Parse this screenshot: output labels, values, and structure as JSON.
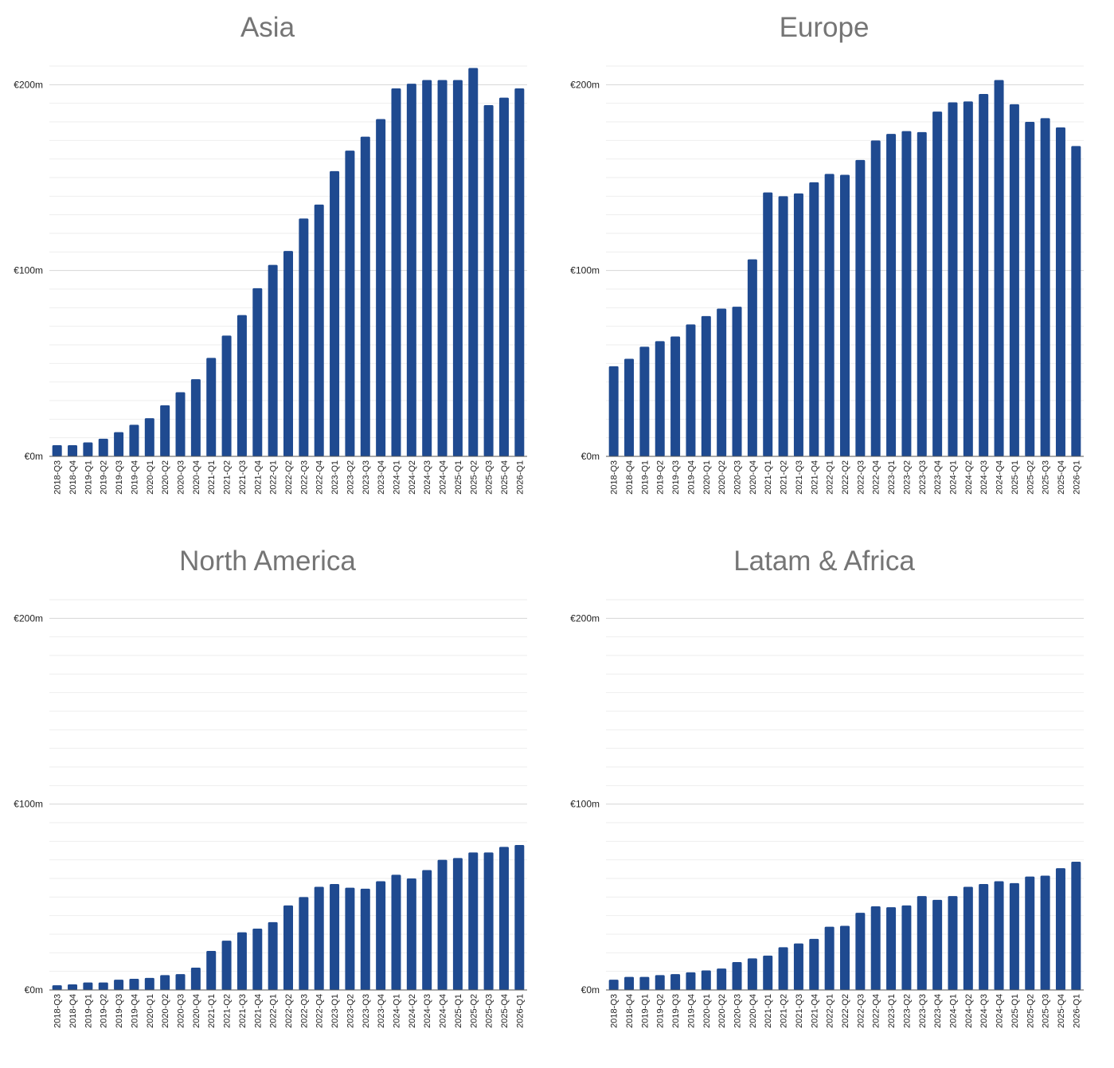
{
  "chart_data": [
    {
      "type": "bar",
      "title": "Asia",
      "ylim": [
        0,
        210
      ],
      "y_ticks": [
        "€0m",
        "€100m",
        "€200m"
      ],
      "y_tick_values": [
        0,
        100,
        200
      ],
      "categories": [
        "2018-Q3",
        "2018-Q4",
        "2019-Q1",
        "2019-Q2",
        "2019-Q3",
        "2019-Q4",
        "2020-Q1",
        "2020-Q2",
        "2020-Q3",
        "2020-Q4",
        "2021-Q1",
        "2021-Q2",
        "2021-Q3",
        "2021-Q4",
        "2022-Q1",
        "2022-Q2",
        "2022-Q3",
        "2022-Q4",
        "2023-Q1",
        "2023-Q2",
        "2023-Q3",
        "2023-Q4",
        "2024-Q1",
        "2024-Q2",
        "2024-Q3",
        "2024-Q4",
        "2025-Q1",
        "2025-Q2",
        "2025-Q3",
        "2025-Q4",
        "2026-Q1"
      ],
      "values": [
        6,
        6,
        7.5,
        9.5,
        13,
        17,
        20.5,
        27.5,
        34.5,
        41.5,
        53,
        65,
        76,
        90.5,
        103,
        110.5,
        128,
        135.5,
        153.5,
        164.5,
        172,
        181.5,
        198,
        200.5,
        202.5,
        202.5,
        202.5,
        209,
        189,
        193,
        198
      ],
      "color": "#1f4a90",
      "grid": true
    },
    {
      "type": "bar",
      "title": "Europe",
      "ylim": [
        0,
        210
      ],
      "y_ticks": [
        "€0m",
        "€100m",
        "€200m"
      ],
      "y_tick_values": [
        0,
        100,
        200
      ],
      "categories": [
        "2018-Q3",
        "2018-Q4",
        "2019-Q1",
        "2019-Q2",
        "2019-Q3",
        "2019-Q4",
        "2020-Q1",
        "2020-Q2",
        "2020-Q3",
        "2020-Q4",
        "2021-Q1",
        "2021-Q2",
        "2021-Q3",
        "2021-Q4",
        "2022-Q1",
        "2022-Q2",
        "2022-Q3",
        "2022-Q4",
        "2023-Q1",
        "2023-Q2",
        "2023-Q3",
        "2023-Q4",
        "2024-Q1",
        "2024-Q2",
        "2024-Q3",
        "2024-Q4",
        "2025-Q1",
        "2025-Q2",
        "2025-Q3",
        "2025-Q4",
        "2026-Q1"
      ],
      "values": [
        48.5,
        52.5,
        59,
        62,
        64.5,
        71,
        75.5,
        79.5,
        80.5,
        106,
        142,
        140,
        141.5,
        147.5,
        152,
        151.5,
        159.5,
        170,
        173.5,
        175,
        174.5,
        185.5,
        190.5,
        191,
        195,
        202.5,
        189.5,
        180,
        182,
        177,
        167
      ],
      "color": "#1f4a90",
      "grid": true
    },
    {
      "type": "bar",
      "title": "North America",
      "ylim": [
        0,
        210
      ],
      "y_ticks": [
        "€0m",
        "€100m",
        "€200m"
      ],
      "y_tick_values": [
        0,
        100,
        200
      ],
      "categories": [
        "2018-Q3",
        "2018-Q4",
        "2019-Q1",
        "2019-Q2",
        "2019-Q3",
        "2019-Q4",
        "2020-Q1",
        "2020-Q2",
        "2020-Q3",
        "2020-Q4",
        "2021-Q1",
        "2021-Q2",
        "2021-Q3",
        "2021-Q4",
        "2022-Q1",
        "2022-Q2",
        "2022-Q3",
        "2022-Q4",
        "2023-Q1",
        "2023-Q2",
        "2023-Q3",
        "2023-Q4",
        "2024-Q1",
        "2024-Q2",
        "2024-Q3",
        "2024-Q4",
        "2025-Q1",
        "2025-Q2",
        "2025-Q3",
        "2025-Q4",
        "2026-Q1"
      ],
      "values": [
        2.5,
        3,
        4,
        4,
        5.5,
        6,
        6.5,
        8,
        8.5,
        12,
        21,
        26.5,
        31,
        33,
        36.5,
        45.5,
        50,
        55.5,
        57,
        55,
        54.5,
        58.5,
        62,
        60,
        64.5,
        70,
        71,
        74,
        74,
        77,
        78
      ],
      "color": "#1f4a90",
      "grid": true
    },
    {
      "type": "bar",
      "title": "Latam & Africa",
      "ylim": [
        0,
        210
      ],
      "y_ticks": [
        "€0m",
        "€100m",
        "€200m"
      ],
      "y_tick_values": [
        0,
        100,
        200
      ],
      "categories": [
        "2018-Q3",
        "2018-Q4",
        "2019-Q1",
        "2019-Q2",
        "2019-Q3",
        "2019-Q4",
        "2020-Q1",
        "2020-Q2",
        "2020-Q3",
        "2020-Q4",
        "2021-Q1",
        "2021-Q2",
        "2021-Q3",
        "2021-Q4",
        "2022-Q1",
        "2022-Q2",
        "2022-Q3",
        "2022-Q4",
        "2023-Q1",
        "2023-Q2",
        "2023-Q3",
        "2023-Q4",
        "2024-Q1",
        "2024-Q2",
        "2024-Q3",
        "2024-Q4",
        "2025-Q1",
        "2025-Q2",
        "2025-Q3",
        "2025-Q4",
        "2026-Q1"
      ],
      "values": [
        5.5,
        7,
        7,
        8,
        8.5,
        9.5,
        10.5,
        11.5,
        15,
        17,
        18.5,
        23,
        25,
        27.5,
        34,
        34.5,
        41.5,
        45,
        44.5,
        45.5,
        50.5,
        48.5,
        50.5,
        55.5,
        57,
        58.5,
        57.5,
        61,
        61.5,
        65.5,
        69
      ],
      "color": "#1f4a90",
      "grid": true
    }
  ]
}
